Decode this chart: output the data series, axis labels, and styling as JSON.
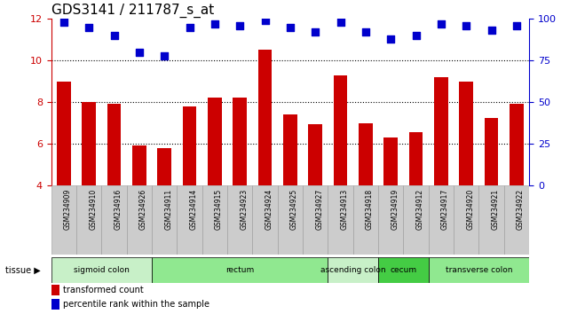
{
  "title": "GDS3141 / 211787_s_at",
  "samples": [
    "GSM234909",
    "GSM234910",
    "GSM234916",
    "GSM234926",
    "GSM234911",
    "GSM234914",
    "GSM234915",
    "GSM234923",
    "GSM234924",
    "GSM234925",
    "GSM234927",
    "GSM234913",
    "GSM234918",
    "GSM234919",
    "GSM234912",
    "GSM234917",
    "GSM234920",
    "GSM234921",
    "GSM234922"
  ],
  "bar_values": [
    9.0,
    8.0,
    7.9,
    5.9,
    5.8,
    7.8,
    8.2,
    8.2,
    10.5,
    7.4,
    6.95,
    9.3,
    7.0,
    6.3,
    6.55,
    9.2,
    9.0,
    7.25,
    7.9
  ],
  "percentile_values": [
    98,
    95,
    90,
    80,
    78,
    95,
    97,
    96,
    99,
    95,
    92,
    98,
    92,
    88,
    90,
    97,
    96,
    93,
    96
  ],
  "ylim_left": [
    4,
    12
  ],
  "ylim_right": [
    0,
    100
  ],
  "yticks_left": [
    4,
    6,
    8,
    10,
    12
  ],
  "yticks_right": [
    0,
    25,
    50,
    75,
    100
  ],
  "bar_color": "#cc0000",
  "dot_color": "#0000cc",
  "tissue_groups": [
    {
      "label": "sigmoid colon",
      "start": 0,
      "end": 3,
      "color": "#c8f0c8"
    },
    {
      "label": "rectum",
      "start": 4,
      "end": 10,
      "color": "#90e890"
    },
    {
      "label": "ascending colon",
      "start": 11,
      "end": 12,
      "color": "#c8f0c8"
    },
    {
      "label": "cecum",
      "start": 13,
      "end": 14,
      "color": "#44cc44"
    },
    {
      "label": "transverse colon",
      "start": 15,
      "end": 18,
      "color": "#90e890"
    }
  ],
  "bar_width": 0.55,
  "dot_size": 30,
  "tick_fontsize": 8,
  "title_fontsize": 11,
  "left_tick_color": "#cc0000",
  "right_tick_color": "#0000cc",
  "label_fontsize": 5.5,
  "tissue_fontsize": 6.5
}
